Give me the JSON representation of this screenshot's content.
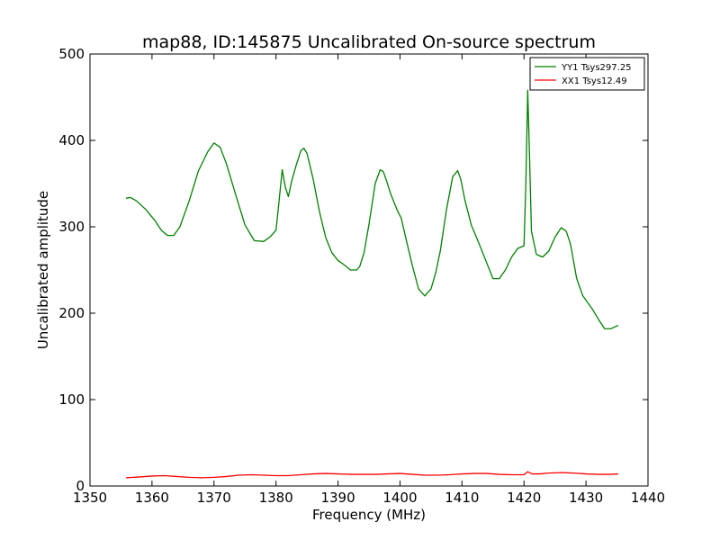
{
  "chart_data": {
    "type": "line",
    "title": "map88, ID:145875 Uncalibrated On-source spectrum",
    "xlabel": "Frequency (MHz)",
    "ylabel": "Uncalibrated amplitude",
    "xlim": [
      1350,
      1440
    ],
    "ylim": [
      0,
      500
    ],
    "xticks": [
      1350,
      1360,
      1370,
      1380,
      1390,
      1400,
      1410,
      1420,
      1430,
      1440
    ],
    "yticks": [
      0,
      100,
      200,
      300,
      400,
      500
    ],
    "grid": false,
    "legend_position": "top-right",
    "series": [
      {
        "name": "YY1 Tsys297.25",
        "color": "#008000",
        "x": [
          1355.8,
          1356.5,
          1357.5,
          1359,
          1360.5,
          1361.5,
          1362.5,
          1363.5,
          1364.5,
          1366,
          1367.5,
          1369,
          1370,
          1371,
          1372,
          1373.5,
          1375,
          1376.5,
          1378,
          1379,
          1380,
          1380.5,
          1381,
          1381.5,
          1382,
          1382.5,
          1383.2,
          1384,
          1384.5,
          1385,
          1386,
          1387,
          1388,
          1389,
          1390,
          1391,
          1392,
          1393,
          1393.5,
          1394.2,
          1395,
          1396,
          1396.8,
          1397.3,
          1397.8,
          1398.5,
          1399.5,
          1400.2,
          1401,
          1402,
          1403,
          1404,
          1405,
          1405.8,
          1406.5,
          1407.5,
          1408.5,
          1409.3,
          1409.8,
          1410.5,
          1411.5,
          1412.5,
          1414,
          1415,
          1416,
          1417,
          1418,
          1419,
          1420,
          1420.3,
          1420.6,
          1420.9,
          1421.2,
          1422,
          1423,
          1424,
          1425,
          1426,
          1426.8,
          1427.5,
          1428.5,
          1429.5,
          1431,
          1432,
          1433,
          1434,
          1435.2
        ],
        "y": [
          333,
          334,
          330,
          320,
          307,
          296,
          290,
          290,
          300,
          330,
          365,
          387,
          397,
          392,
          373,
          337,
          302,
          284,
          283,
          288,
          296,
          330,
          366,
          346,
          335,
          352,
          370,
          388,
          391,
          385,
          355,
          318,
          288,
          270,
          261,
          256,
          250,
          250,
          254,
          270,
          303,
          350,
          366,
          364,
          354,
          338,
          320,
          310,
          285,
          255,
          228,
          220,
          228,
          248,
          272,
          320,
          358,
          365,
          355,
          330,
          302,
          285,
          258,
          240,
          240,
          250,
          265,
          275,
          278,
          350,
          458,
          380,
          295,
          268,
          265,
          272,
          288,
          299,
          295,
          280,
          240,
          220,
          205,
          193,
          182,
          182,
          186
        ]
      },
      {
        "name": "XX1 Tsys12.49",
        "color": "#ff0000",
        "x": [
          1355.8,
          1358,
          1360,
          1362,
          1364,
          1366,
          1368,
          1370,
          1372,
          1374,
          1376,
          1378,
          1380,
          1382,
          1384,
          1386,
          1388,
          1390,
          1392,
          1394,
          1396,
          1398,
          1400,
          1402,
          1404,
          1406,
          1408,
          1410,
          1412,
          1414,
          1416,
          1418,
          1420,
          1420.6,
          1421.3,
          1422.5,
          1424,
          1426,
          1428,
          1430,
          1432,
          1434,
          1435.2
        ],
        "y": [
          9.5,
          10.5,
          11.5,
          12,
          11,
          10,
          9.5,
          10,
          11,
          12.5,
          13,
          12.5,
          12,
          12,
          13,
          14,
          14.5,
          14,
          13.5,
          13.5,
          13.5,
          14,
          14.5,
          13.5,
          12.5,
          12.5,
          13,
          14,
          14.5,
          14.5,
          13.5,
          13,
          13,
          16.5,
          14,
          14,
          15,
          15.5,
          15,
          14,
          13.5,
          13.5,
          14
        ]
      }
    ]
  }
}
